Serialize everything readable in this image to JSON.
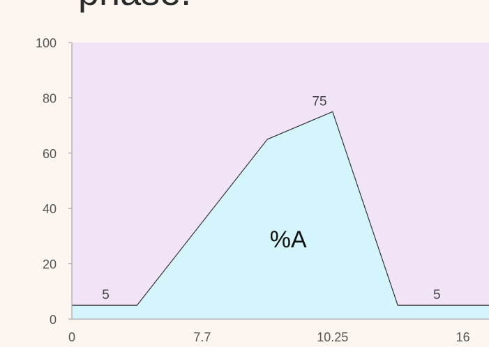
{
  "title_fragment": "phase.",
  "chart_data": {
    "type": "area",
    "x": [
      0,
      2.5,
      7.5,
      10,
      12.5,
      15,
      16
    ],
    "y": [
      5,
      5,
      65,
      75,
      5,
      5,
      5
    ],
    "xlim": [
      0,
      16
    ],
    "ylim": [
      0,
      100
    ],
    "x_ticks": [
      {
        "value": 0,
        "label": "0"
      },
      {
        "value": 5,
        "label": "7.7"
      },
      {
        "value": 10,
        "label": "10.25"
      },
      {
        "value": 15,
        "label": "16"
      }
    ],
    "y_ticks": [
      0,
      20,
      40,
      60,
      80,
      100
    ],
    "data_labels": [
      {
        "x": 1.3,
        "y": 5,
        "text": "5"
      },
      {
        "x": 9.5,
        "y": 75,
        "text": "75"
      },
      {
        "x": 14,
        "y": 5,
        "text": "5"
      }
    ],
    "area_label": {
      "x": 8.3,
      "y": 26,
      "text": "%A"
    },
    "grid": false,
    "colors": {
      "background": "#f1e4f7",
      "area_fill": "#d4f5fb",
      "line": "#333333",
      "page": "#fdf5ef"
    }
  }
}
